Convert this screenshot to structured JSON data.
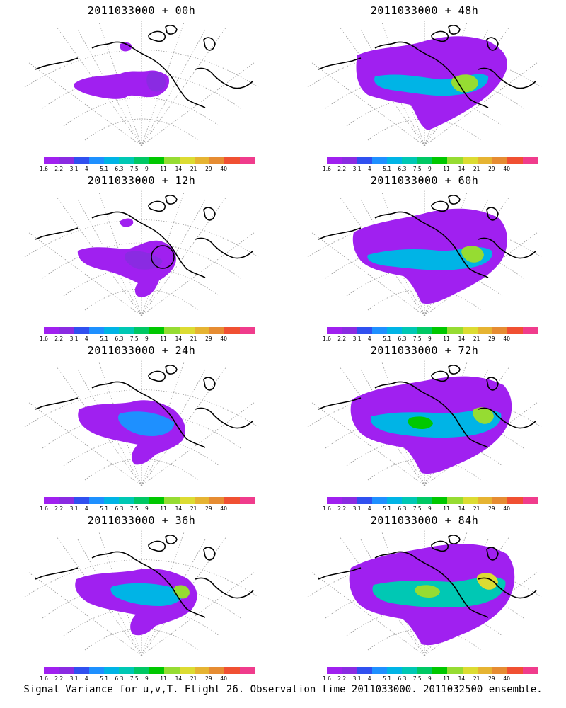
{
  "footer": "Signal Variance for u,v,T. Flight 26. Observation time 2011033000. 2011032500 ensemble.",
  "colorbar": {
    "ticks": [
      "1.6",
      "2.2",
      "3.1",
      "4",
      "5.1",
      "6.3",
      "7.5",
      "9",
      "11",
      "14",
      "21",
      "29",
      "40"
    ],
    "colors": [
      "#a020f0",
      "#8a2be2",
      "#3050f0",
      "#1e90ff",
      "#00b4e6",
      "#00c8b4",
      "#00c864",
      "#00c800",
      "#96dc32",
      "#dcdc32",
      "#e6b432",
      "#e68c32",
      "#f05032",
      "#f03c8c"
    ]
  },
  "panels": [
    {
      "title": "2011033000 + 00h"
    },
    {
      "title": "2011033000 + 48h"
    },
    {
      "title": "2011033000 + 12h"
    },
    {
      "title": "2011033000 + 60h"
    },
    {
      "title": "2011033000 + 24h"
    },
    {
      "title": "2011033000 + 72h"
    },
    {
      "title": "2011033000 + 36h"
    },
    {
      "title": "2011033000 + 84h"
    }
  ]
}
